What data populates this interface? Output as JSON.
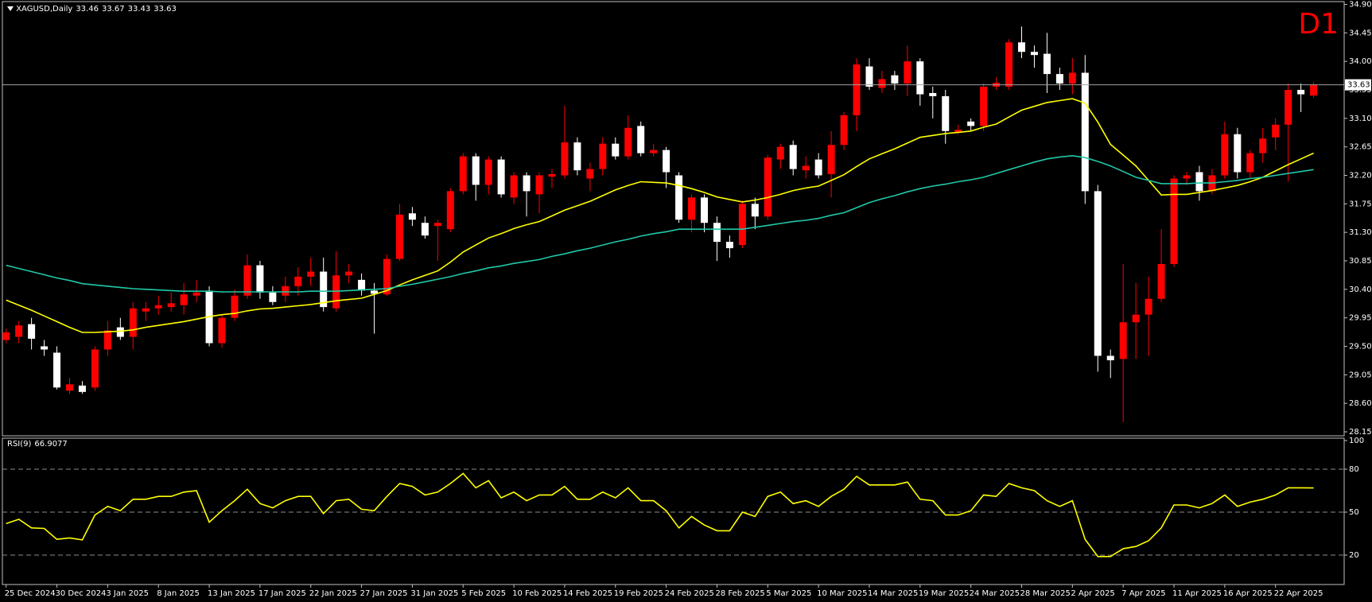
{
  "chart_data": [
    {
      "type": "candlestick",
      "symbol": "XAGUSD,Daily",
      "label": "D1",
      "up_color": "#ff0000",
      "down_color": "#ffffff",
      "categories": [
        "25 Dec 2024",
        null,
        null,
        null,
        "30 Dec 2024",
        null,
        null,
        null,
        "3 Jan 2025",
        null,
        null,
        null,
        "8 Jan 2025",
        null,
        null,
        null,
        "13 Jan 2025",
        null,
        null,
        null,
        "17 Jan 2025",
        null,
        null,
        null,
        "22 Jan 2025",
        null,
        null,
        null,
        "27 Jan 2025",
        null,
        null,
        null,
        "31 Jan 2025",
        null,
        null,
        null,
        "5 Feb 2025",
        null,
        null,
        null,
        "10 Feb 2025",
        null,
        null,
        null,
        "14 Feb 2025",
        null,
        null,
        null,
        "19 Feb 2025",
        null,
        null,
        null,
        "24 Feb 2025",
        null,
        null,
        null,
        "28 Feb 2025",
        null,
        null,
        null,
        "5 Mar 2025",
        null,
        null,
        null,
        "10 Mar 2025",
        null,
        null,
        null,
        "14 Mar 2025",
        null,
        null,
        null,
        "19 Mar 2025",
        null,
        null,
        null,
        "24 Mar 2025",
        null,
        null,
        null,
        "28 Mar 2025",
        null,
        null,
        null,
        "2 Apr 2025",
        null,
        null,
        null,
        "7 Apr 2025",
        null,
        null,
        null,
        "11 Apr 2025",
        null,
        null,
        null,
        "16 Apr 2025",
        null,
        null,
        null,
        "22 Apr 2025",
        null,
        null,
        null
      ],
      "open": [
        29.6,
        29.65,
        29.85,
        29.5,
        29.4,
        28.8,
        28.88,
        28.85,
        29.45,
        29.8,
        29.65,
        30.05,
        30.1,
        30.12,
        30.15,
        30.3,
        30.38,
        29.55,
        29.95,
        30.3,
        30.78,
        30.35,
        30.3,
        30.45,
        30.6,
        30.68,
        30.1,
        30.62,
        30.55,
        30.38,
        30.32,
        30.88,
        31.6,
        31.45,
        31.4,
        31.35,
        31.95,
        32.5,
        32.05,
        32.45,
        31.85,
        32.2,
        31.9,
        32.18,
        32.2,
        32.72,
        32.15,
        32.3,
        32.7,
        32.5,
        32.98,
        32.55,
        32.6,
        32.2,
        31.5,
        31.85,
        31.45,
        31.15,
        31.1,
        31.75,
        31.55,
        32.45,
        32.68,
        32.28,
        32.45,
        32.22,
        32.68,
        33.15,
        33.92,
        33.58,
        33.78,
        33.65,
        34.0,
        33.5,
        33.45,
        32.88,
        33.05,
        32.98,
        33.6,
        33.6,
        34.3,
        34.15,
        34.12,
        33.8,
        33.65,
        33.82,
        31.95,
        29.35,
        29.3,
        29.88,
        30.0,
        30.25,
        30.8,
        32.15,
        32.25,
        31.95,
        32.2,
        32.85,
        32.25,
        32.55,
        32.8,
        33.0,
        33.55,
        33.46
      ],
      "high": [
        29.78,
        29.9,
        29.95,
        29.6,
        29.5,
        29.0,
        28.95,
        29.5,
        29.9,
        29.95,
        30.2,
        30.2,
        30.3,
        30.35,
        30.5,
        30.55,
        30.45,
        30.0,
        30.4,
        30.95,
        30.85,
        30.45,
        30.6,
        30.75,
        30.9,
        30.9,
        31.0,
        30.8,
        30.65,
        30.5,
        30.95,
        31.75,
        31.7,
        31.55,
        31.5,
        32.0,
        32.55,
        32.55,
        32.5,
        32.5,
        32.25,
        32.25,
        32.25,
        32.3,
        33.3,
        32.8,
        32.4,
        32.8,
        32.8,
        33.15,
        33.05,
        32.7,
        32.65,
        32.25,
        31.9,
        31.9,
        31.55,
        31.25,
        31.8,
        31.85,
        32.52,
        32.7,
        32.75,
        32.5,
        32.55,
        32.9,
        33.2,
        34.05,
        34.05,
        33.85,
        33.85,
        34.25,
        34.05,
        33.6,
        33.55,
        33.0,
        33.1,
        33.65,
        33.75,
        34.35,
        34.55,
        34.25,
        34.45,
        33.9,
        34.05,
        34.1,
        32.05,
        29.45,
        30.8,
        30.5,
        30.6,
        31.35,
        32.2,
        32.25,
        32.35,
        32.3,
        33.05,
        32.95,
        32.6,
        32.95,
        33.1,
        33.65,
        33.65,
        33.67
      ],
      "low": [
        29.55,
        29.55,
        29.45,
        29.35,
        28.82,
        28.75,
        28.75,
        28.8,
        29.35,
        29.6,
        29.45,
        29.9,
        30.0,
        30.05,
        30.0,
        30.2,
        29.5,
        29.48,
        29.9,
        30.25,
        30.25,
        30.15,
        30.2,
        30.3,
        30.45,
        30.05,
        30.05,
        30.5,
        30.3,
        29.7,
        30.3,
        30.85,
        31.4,
        31.2,
        30.85,
        31.3,
        31.9,
        31.8,
        31.9,
        31.85,
        31.75,
        31.55,
        31.6,
        32.0,
        32.15,
        32.2,
        31.95,
        32.2,
        32.45,
        32.45,
        32.5,
        32.5,
        32.0,
        31.45,
        31.3,
        31.3,
        30.85,
        30.9,
        31.05,
        31.35,
        31.5,
        32.3,
        32.2,
        32.15,
        32.15,
        31.85,
        32.6,
        32.9,
        33.55,
        33.5,
        33.55,
        33.45,
        33.3,
        33.1,
        32.7,
        32.85,
        32.9,
        32.9,
        33.55,
        33.55,
        34.05,
        33.9,
        33.5,
        33.55,
        33.48,
        31.75,
        29.1,
        29.0,
        28.3,
        29.3,
        29.35,
        30.2,
        30.75,
        32.05,
        31.8,
        31.9,
        32.15,
        32.15,
        32.15,
        32.4,
        32.6,
        32.1,
        33.2,
        33.43
      ],
      "close": [
        29.72,
        29.83,
        29.62,
        29.45,
        28.85,
        28.9,
        28.78,
        29.45,
        29.75,
        29.65,
        30.1,
        30.1,
        30.15,
        30.18,
        30.32,
        30.35,
        29.55,
        29.95,
        30.3,
        30.78,
        30.35,
        30.2,
        30.45,
        30.6,
        30.68,
        30.12,
        30.62,
        30.68,
        30.38,
        30.33,
        30.88,
        31.58,
        31.5,
        31.25,
        31.45,
        31.95,
        32.5,
        32.05,
        32.45,
        31.9,
        32.2,
        31.95,
        32.2,
        32.22,
        32.72,
        32.28,
        32.3,
        32.7,
        32.5,
        32.95,
        32.55,
        32.6,
        32.25,
        31.5,
        31.85,
        31.45,
        31.15,
        31.05,
        31.75,
        31.55,
        32.48,
        32.65,
        32.3,
        32.35,
        32.2,
        32.68,
        33.15,
        33.95,
        33.6,
        33.72,
        33.65,
        34.0,
        33.48,
        33.45,
        32.9,
        32.92,
        32.98,
        33.6,
        33.66,
        34.3,
        34.15,
        34.1,
        33.8,
        33.65,
        33.82,
        31.95,
        29.35,
        29.28,
        29.88,
        30.0,
        30.25,
        30.8,
        32.15,
        32.2,
        31.95,
        32.2,
        32.85,
        32.25,
        32.55,
        32.78,
        33.0,
        33.55,
        33.48,
        33.63
      ],
      "series": [
        {
          "color": "#ffff00",
          "values": [
            30.23,
            30.15,
            30.07,
            29.98,
            29.89,
            29.8,
            29.72,
            29.72,
            29.73,
            29.74,
            29.76,
            29.8,
            29.83,
            29.86,
            29.89,
            29.93,
            29.97,
            30.0,
            30.02,
            30.06,
            30.09,
            30.1,
            30.12,
            30.14,
            30.16,
            30.19,
            30.22,
            30.24,
            30.26,
            30.32,
            30.38,
            30.47,
            30.55,
            30.62,
            30.69,
            30.83,
            30.99,
            31.1,
            31.21,
            31.28,
            31.36,
            31.42,
            31.47,
            31.56,
            31.65,
            31.72,
            31.79,
            31.88,
            31.97,
            32.04,
            32.1,
            32.09,
            32.08,
            32.04,
            31.99,
            31.93,
            31.86,
            31.82,
            31.78,
            31.81,
            31.85,
            31.9,
            31.96,
            32.0,
            32.03,
            32.12,
            32.21,
            32.34,
            32.46,
            32.54,
            32.62,
            32.71,
            32.8,
            32.83,
            32.86,
            32.88,
            32.9,
            32.96,
            33.01,
            33.12,
            33.23,
            33.29,
            33.35,
            33.38,
            33.41,
            33.34,
            33.04,
            32.69,
            32.52,
            32.35,
            32.12,
            31.89,
            31.9,
            31.9,
            31.93,
            31.96,
            32.0,
            32.04,
            32.1,
            32.17,
            32.27,
            32.37,
            32.46,
            32.55
          ]
        },
        {
          "color": "#20c8a8",
          "values": [
            30.78,
            30.73,
            30.68,
            30.63,
            30.58,
            30.54,
            30.49,
            30.47,
            30.45,
            30.43,
            30.41,
            30.4,
            30.39,
            30.38,
            30.37,
            30.37,
            30.37,
            30.36,
            30.36,
            30.36,
            30.36,
            30.36,
            30.36,
            30.36,
            30.37,
            30.37,
            30.37,
            30.38,
            30.39,
            30.4,
            30.41,
            30.45,
            30.48,
            30.52,
            30.56,
            30.6,
            30.65,
            30.69,
            30.74,
            30.77,
            30.81,
            30.84,
            30.87,
            30.92,
            30.96,
            31.01,
            31.05,
            31.1,
            31.15,
            31.19,
            31.24,
            31.28,
            31.31,
            31.35,
            31.35,
            31.35,
            31.35,
            31.35,
            31.35,
            31.38,
            31.41,
            31.44,
            31.47,
            31.49,
            31.52,
            31.57,
            31.61,
            31.69,
            31.77,
            31.83,
            31.88,
            31.94,
            31.99,
            32.03,
            32.06,
            32.1,
            32.13,
            32.17,
            32.23,
            32.29,
            32.35,
            32.41,
            32.46,
            32.49,
            32.51,
            32.48,
            32.42,
            32.35,
            32.26,
            32.17,
            32.12,
            32.07,
            32.07,
            32.07,
            32.08,
            32.08,
            32.1,
            32.12,
            32.15,
            32.17,
            32.2,
            32.23,
            32.26,
            32.29
          ]
        }
      ],
      "ylim": [
        28.15,
        34.9
      ],
      "yticks": [
        28.15,
        {
          "value": 28.6,
          "label": "28.60"
        },
        29.05,
        {
          "value": 29.5,
          "label": "29.50"
        },
        29.95,
        {
          "value": 30.4,
          "label": "30.40"
        },
        30.85,
        {
          "value": 31.3,
          "label": "31.30"
        },
        31.75,
        {
          "value": 32.2,
          "label": "32.20"
        },
        32.65,
        {
          "value": 33.1,
          "label": "33.10"
        },
        33.55,
        {
          "value": 34.0,
          "label": "34.00"
        },
        34.45,
        {
          "value": 34.9,
          "label": "34.90"
        }
      ]
    },
    {
      "type": "line",
      "title": "RSI(9)",
      "series": [
        {
          "color": "#ffff00",
          "values": [
            42,
            45,
            39,
            38.6,
            31,
            32,
            30.6,
            48,
            54,
            51,
            59,
            59,
            61,
            61,
            64,
            65,
            43,
            51,
            58,
            66,
            56,
            53,
            58,
            61,
            61,
            49,
            58,
            59,
            52,
            51,
            61,
            70,
            68,
            62,
            64,
            70,
            77,
            67,
            72,
            60,
            64,
            58,
            62,
            62,
            68,
            59,
            59,
            64,
            60,
            67,
            58,
            58,
            51,
            39,
            47,
            41,
            37,
            37,
            50,
            47,
            61,
            64,
            56,
            58,
            54,
            61,
            66,
            75,
            69,
            69,
            69,
            71,
            59,
            58,
            48,
            48,
            51,
            62,
            61,
            70,
            67,
            65,
            58,
            54,
            58,
            31,
            19,
            19,
            24.5,
            26,
            30,
            39,
            55,
            55,
            53,
            56,
            62,
            54,
            57,
            59,
            62,
            67,
            67,
            66.9077
          ]
        }
      ],
      "ylim": [
        0,
        100
      ],
      "yticks": [
        20,
        50,
        80,
        100
      ]
    }
  ]
}
